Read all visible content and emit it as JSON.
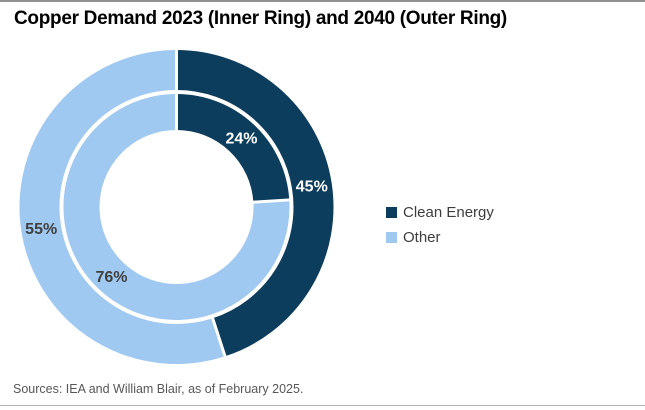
{
  "title": "Copper Demand 2023 (Inner Ring) and 2040 (Outer Ring)",
  "source_note": "Sources: IEA and William Blair, as of February 2025.",
  "legend": {
    "items": [
      {
        "label": "Clean Energy",
        "color": "#0d3d5c"
      },
      {
        "label": "Other",
        "color": "#a0c9f2"
      }
    ]
  },
  "chart_data": {
    "type": "donut",
    "title": "Copper Demand 2023 (Inner Ring) and 2040 (Outer Ring)",
    "categories": [
      "Clean Energy",
      "Other"
    ],
    "colors": [
      "#0d3d5c",
      "#a0c9f2"
    ],
    "label_colors": [
      "#ffffff",
      "#3f3f3f"
    ],
    "units": "%",
    "start_angle_deg": 0,
    "direction": "clockwise",
    "legend_position": "right",
    "rings": [
      {
        "id": "2023",
        "position": "inner",
        "values": [
          24,
          76
        ],
        "labels": [
          "24%",
          "76%"
        ]
      },
      {
        "id": "2040",
        "position": "outer",
        "values": [
          45,
          55
        ],
        "labels": [
          "45%",
          "55%"
        ]
      }
    ]
  }
}
